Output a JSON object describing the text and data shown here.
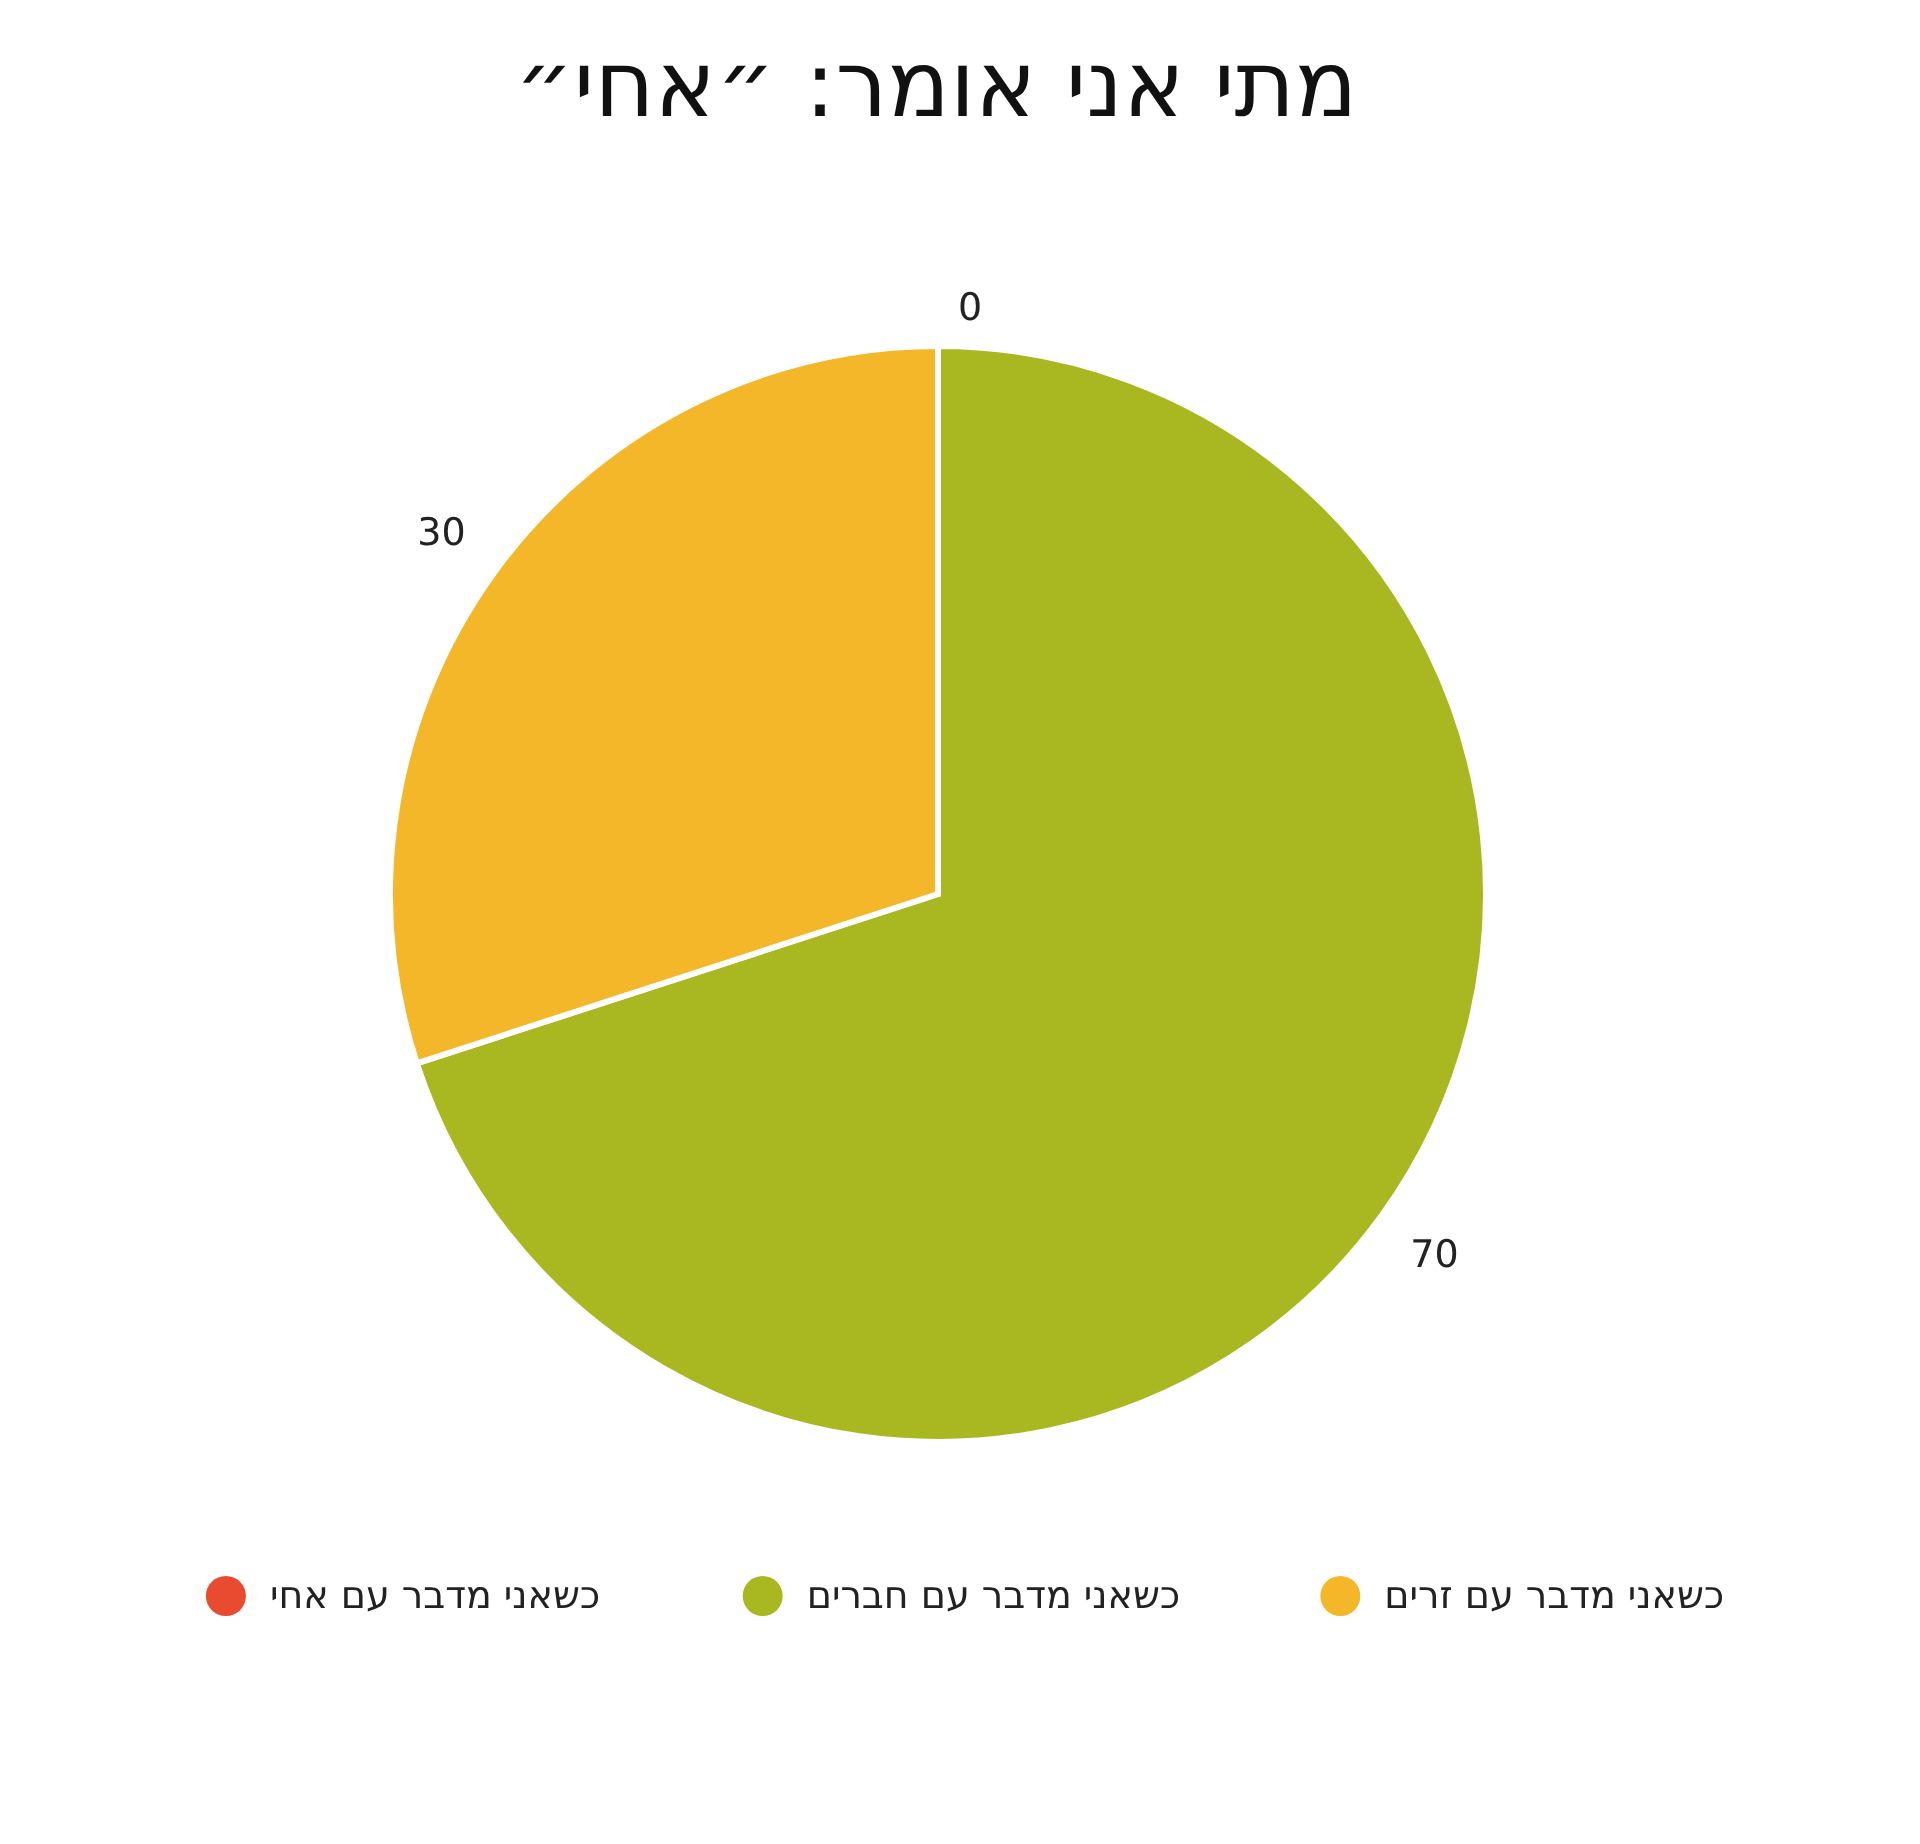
{
  "chart_data": {
    "type": "pie",
    "title": "מתי אני אומר: ״אחי״",
    "categories": [
      "כשאני מדבר עם אחי",
      "כשאני מדבר עם חברים",
      "כשאני מדבר עם זרים"
    ],
    "values": [
      0,
      70,
      30
    ],
    "colors": [
      "#e94b30",
      "#a9b820",
      "#f4b72a"
    ],
    "value_labels": [
      "0",
      "70",
      "30"
    ],
    "legend": "bottom"
  }
}
